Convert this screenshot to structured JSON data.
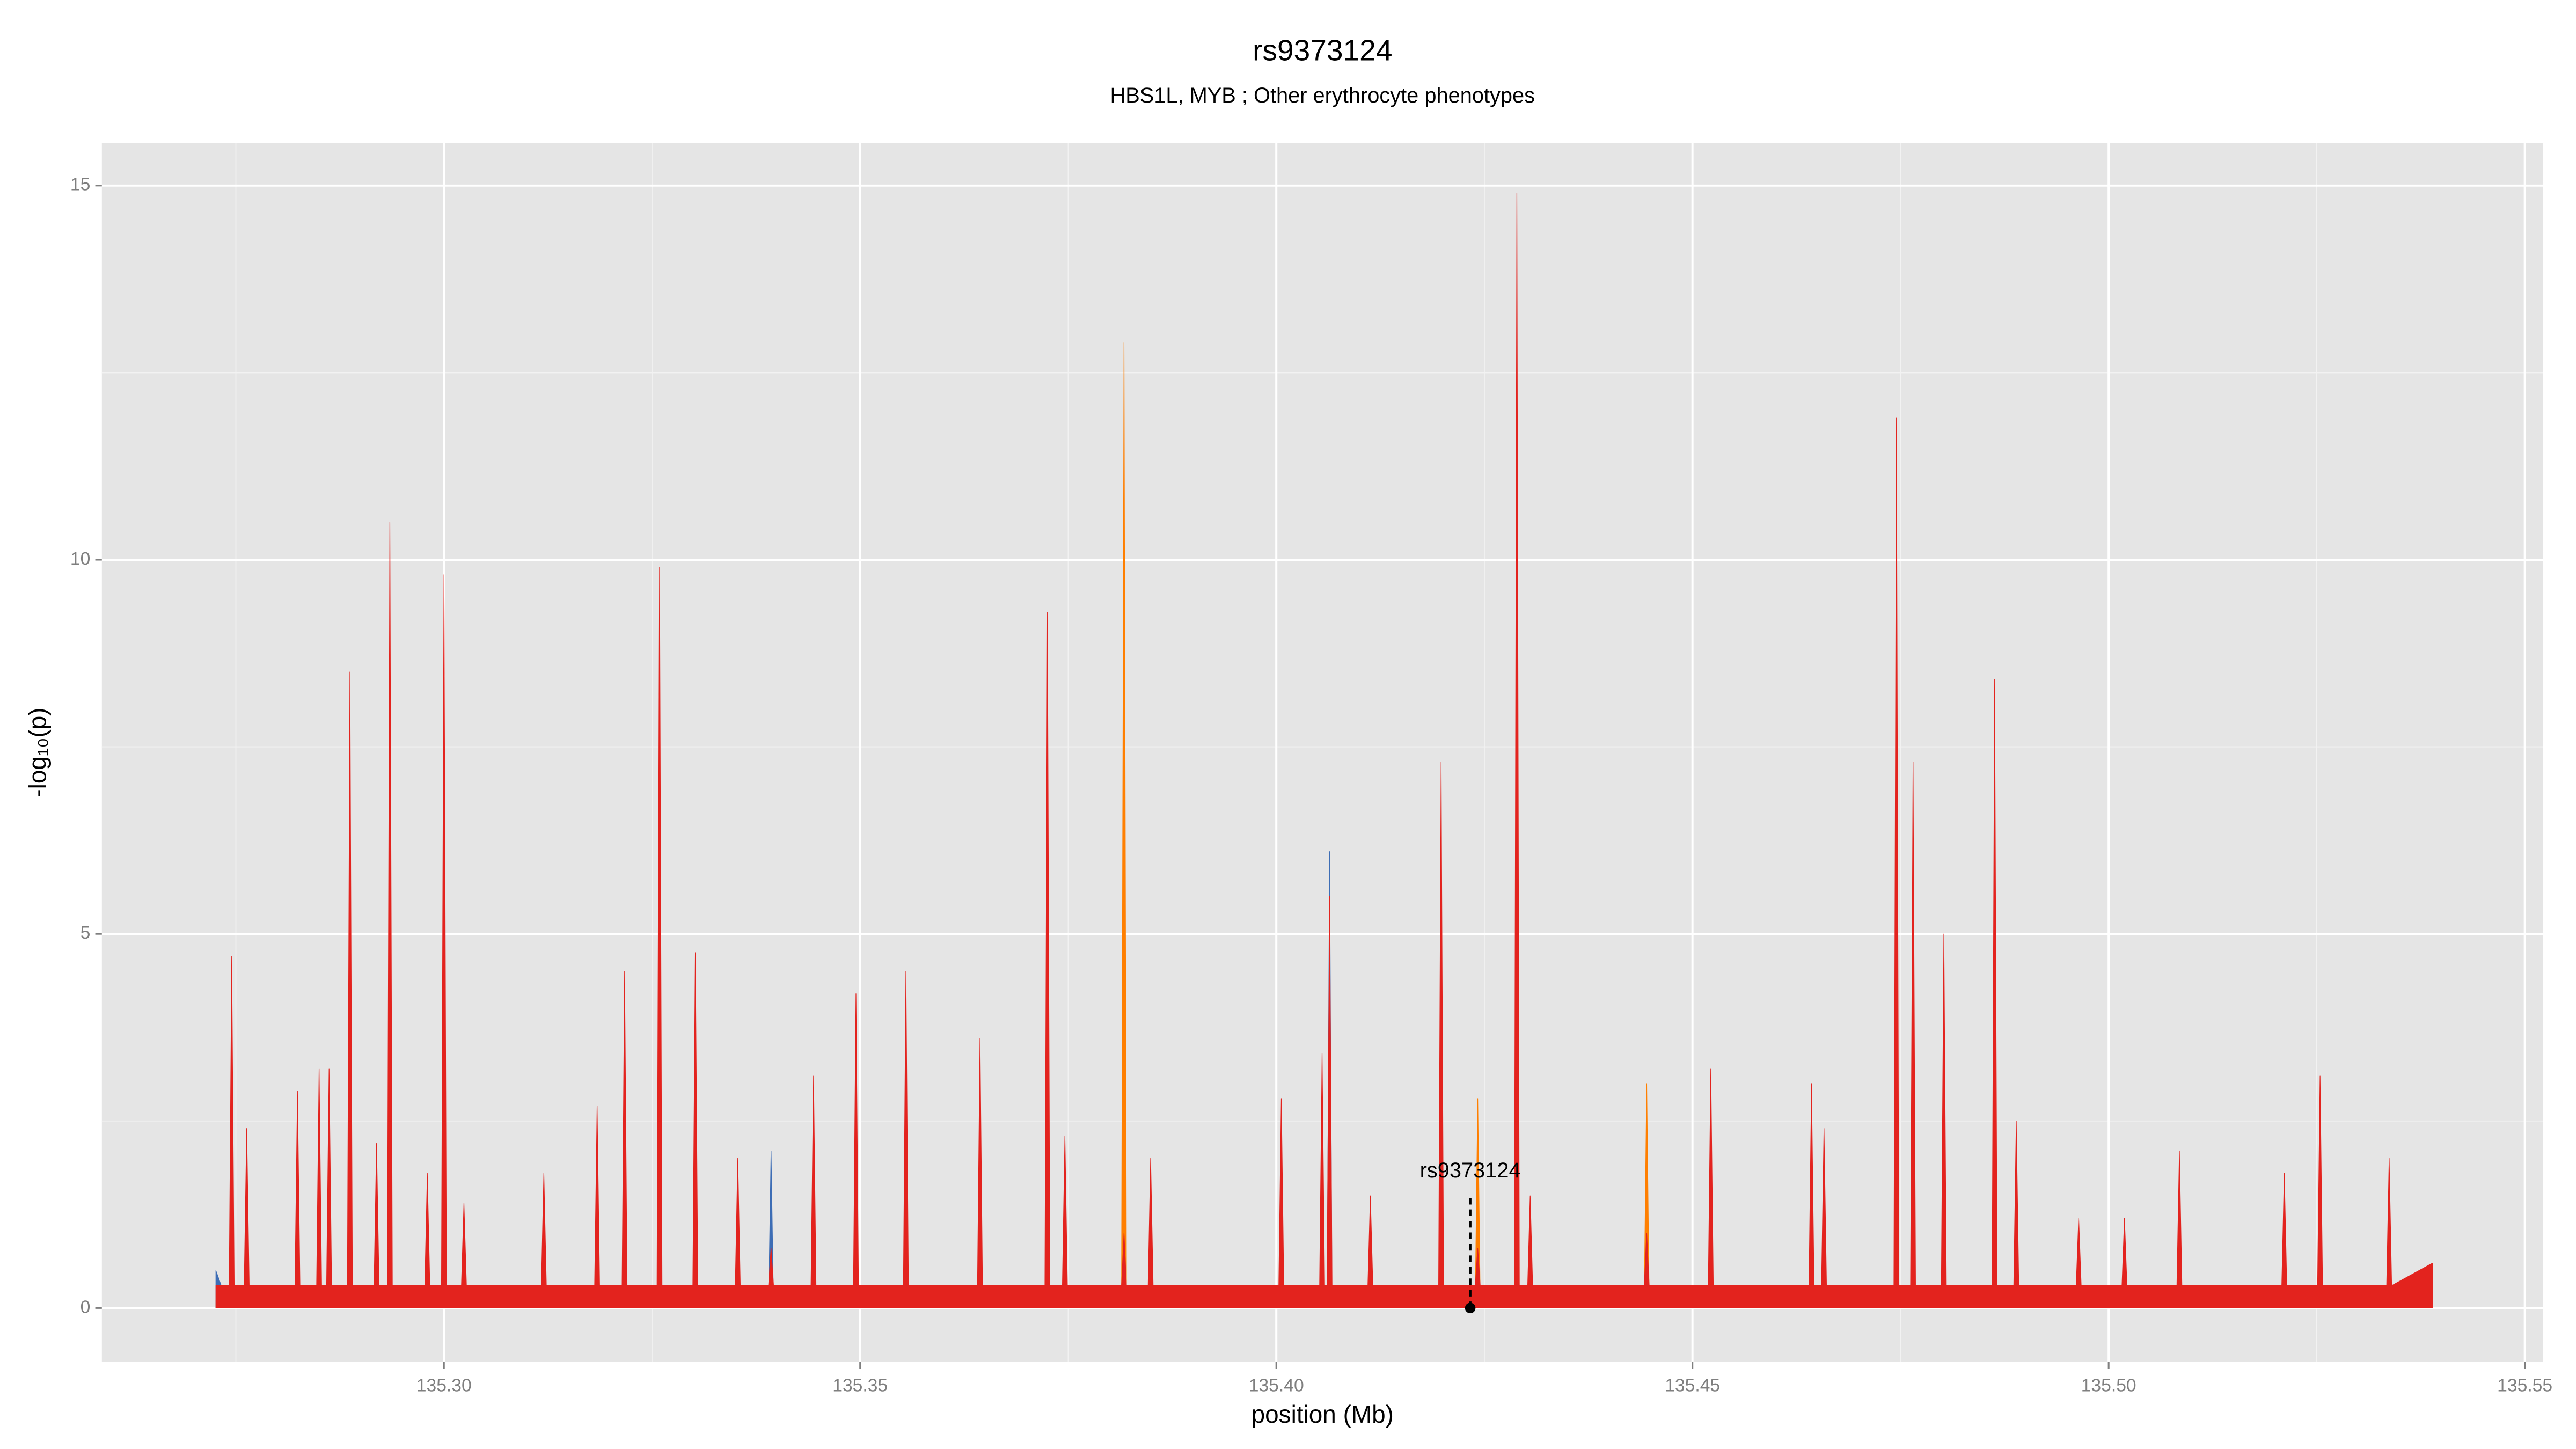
{
  "chart_data": {
    "type": "area",
    "title": "rs9373124",
    "subtitle": "HBS1L, MYB ; Other erythrocyte phenotypes",
    "x_label": "position (Mb)",
    "y_label": "-log₁₀(p)",
    "xlim": [
      135.2589,
      135.5522
    ],
    "ylim": [
      -0.72,
      15.57
    ],
    "xticks": [
      {
        "value": 135.3,
        "label": "135.30"
      },
      {
        "value": 135.35,
        "label": "135.35"
      },
      {
        "value": 135.4,
        "label": "135.40"
      },
      {
        "value": 135.45,
        "label": "135.45"
      },
      {
        "value": 135.5,
        "label": "135.50"
      },
      {
        "value": 135.55,
        "label": "135.55"
      }
    ],
    "yticks": [
      0,
      5,
      10,
      15
    ],
    "grid": true,
    "x": [
      135.2726,
      135.2742,
      135.2745,
      135.2748,
      135.276,
      135.2763,
      135.2766,
      135.2821,
      135.2824,
      135.2827,
      135.2847,
      135.285,
      135.2853,
      135.2859,
      135.2862,
      135.2865,
      135.2884,
      135.2887,
      135.289,
      135.2916,
      135.2919,
      135.2922,
      135.2932,
      135.2935,
      135.2938,
      135.2977,
      135.298,
      135.2983,
      135.2997,
      135.3,
      135.3003,
      135.3021,
      135.3024,
      135.3027,
      135.3117,
      135.312,
      135.3123,
      135.3181,
      135.3184,
      135.3187,
      135.3214,
      135.3217,
      135.322,
      135.3256,
      135.3259,
      135.3262,
      135.3299,
      135.3302,
      135.3305,
      135.335,
      135.3353,
      135.3356,
      135.339,
      135.3393,
      135.3396,
      135.3441,
      135.3444,
      135.3447,
      135.3492,
      135.3495,
      135.3498,
      135.3552,
      135.3555,
      135.3558,
      135.3641,
      135.3644,
      135.3647,
      135.3722,
      135.3725,
      135.3728,
      135.3743,
      135.3746,
      135.3749,
      135.3814,
      135.3817,
      135.382,
      135.3846,
      135.3849,
      135.3852,
      135.4003,
      135.4006,
      135.4009,
      135.4052,
      135.4055,
      135.4058,
      135.4061,
      135.4064,
      135.4067,
      135.411,
      135.4113,
      135.4116,
      135.4195,
      135.4198,
      135.4201,
      135.4239,
      135.4242,
      135.4245,
      135.4286,
      135.4289,
      135.4292,
      135.4302,
      135.4305,
      135.4308,
      135.4442,
      135.4445,
      135.4448,
      135.4519,
      135.4522,
      135.4525,
      135.464,
      135.4643,
      135.4646,
      135.4655,
      135.4658,
      135.4661,
      135.4742,
      135.4745,
      135.4748,
      135.4762,
      135.4765,
      135.4768,
      135.4799,
      135.4802,
      135.4805,
      135.486,
      135.4863,
      135.4866,
      135.4886,
      135.4889,
      135.4892,
      135.4961,
      135.4964,
      135.4967,
      135.5016,
      135.5019,
      135.5022,
      135.5082,
      135.5085,
      135.5088,
      135.5208,
      135.5211,
      135.5214,
      135.5251,
      135.5254,
      135.5257,
      135.5334,
      135.5337,
      135.534,
      135.5389
    ],
    "series": [
      {
        "color": "#ff7f00",
        "values": [
          0.1,
          0.1,
          0.3,
          0.1,
          0.1,
          0.3,
          0.1,
          0.1,
          0.5,
          0.1,
          0.1,
          0.3,
          0.1,
          0.1,
          0.3,
          0.1,
          0.1,
          0.5,
          0.1,
          0.1,
          0.3,
          0.1,
          0.1,
          0.5,
          0.1,
          0.1,
          0.3,
          0.1,
          0.1,
          0.5,
          0.1,
          0.1,
          0.3,
          0.1,
          0.1,
          0.3,
          0.1,
          0.1,
          0.3,
          0.1,
          0.1,
          0.5,
          0.1,
          0.1,
          0.5,
          0.1,
          0.1,
          0.5,
          0.1,
          0.1,
          0.3,
          0.1,
          0.1,
          0.3,
          0.1,
          0.1,
          0.5,
          0.1,
          0.1,
          0.5,
          0.1,
          0.1,
          0.5,
          0.1,
          0.1,
          0.5,
          0.1,
          0.1,
          0.5,
          0.1,
          0.1,
          0.3,
          0.1,
          0.1,
          12.9,
          0.1,
          0.1,
          0.5,
          0.1,
          0.1,
          1.5,
          0.1,
          0.1,
          0.5,
          0.1,
          0.1,
          0.5,
          0.1,
          0.1,
          1.4,
          0.1,
          0.1,
          0.5,
          0.1,
          0.1,
          2.8,
          0.1,
          0.1,
          0.5,
          0.1,
          0.1,
          0.5,
          0.1,
          0.1,
          3.0,
          0.1,
          0.1,
          0.5,
          0.1,
          0.1,
          0.5,
          0.1,
          0.1,
          0.5,
          0.1,
          0.1,
          0.5,
          0.1,
          0.1,
          0.5,
          0.1,
          0.1,
          0.5,
          0.1,
          0.1,
          2.0,
          0.1,
          0.1,
          0.5,
          0.1,
          0.1,
          0.8,
          0.1,
          0.1,
          0.5,
          0.1,
          0.1,
          0.5,
          0.1,
          0.1,
          1.7,
          0.1,
          0.1,
          0.5,
          0.1,
          0.1,
          0.5,
          0.1,
          0.3
        ]
      },
      {
        "color": "#3d6db5",
        "values": [
          0.5,
          0,
          0.6,
          0,
          0,
          0,
          0,
          0,
          0,
          0,
          0,
          0,
          0,
          0,
          0,
          0,
          0,
          1.4,
          0,
          0,
          0,
          0,
          0,
          0,
          0,
          0,
          0,
          0,
          0,
          0,
          0,
          0,
          0,
          0,
          0,
          0,
          0,
          0,
          0,
          0,
          0,
          0,
          0,
          0,
          0.8,
          0,
          0,
          0,
          0,
          0,
          0,
          0,
          0,
          2.1,
          0,
          0,
          0,
          0,
          0,
          1.2,
          0,
          0,
          0,
          0,
          0,
          0,
          0,
          0,
          0,
          0,
          0,
          0,
          0,
          0,
          0,
          0,
          0,
          1.0,
          0,
          0,
          0,
          0,
          0,
          0,
          0,
          0,
          6.1,
          0,
          0,
          0,
          0,
          0,
          2.7,
          0,
          0,
          0,
          0,
          0,
          0,
          0,
          0,
          0,
          0,
          0,
          0,
          0,
          0,
          0,
          0,
          0,
          0,
          0,
          0,
          0,
          0,
          0,
          0,
          0,
          0,
          0,
          0,
          0,
          0,
          0,
          0,
          0,
          0,
          0,
          1.5,
          0,
          0,
          0,
          0,
          0,
          0.9,
          0,
          0,
          0,
          0,
          0,
          0,
          0,
          0,
          2.1,
          0,
          0,
          0,
          0,
          0
        ]
      },
      {
        "color": "#e3231e",
        "values": [
          0.3,
          0.3,
          4.7,
          0.3,
          0.3,
          2.4,
          0.3,
          0.3,
          2.9,
          0.3,
          0.3,
          3.2,
          0.3,
          0.3,
          3.2,
          0.3,
          0.3,
          8.5,
          0.3,
          0.3,
          2.2,
          0.3,
          0.3,
          10.5,
          0.3,
          0.3,
          1.8,
          0.3,
          0.3,
          9.8,
          0.3,
          0.3,
          1.4,
          0.3,
          0.3,
          1.8,
          0.3,
          0.3,
          2.7,
          0.3,
          0.3,
          4.5,
          0.3,
          0.3,
          9.9,
          0.3,
          0.3,
          4.75,
          0.3,
          0.3,
          2.0,
          0.3,
          0.3,
          0.8,
          0.3,
          0.3,
          3.1,
          0.3,
          0.3,
          4.2,
          0.3,
          0.3,
          4.5,
          0.3,
          0.3,
          3.6,
          0.3,
          0.3,
          9.3,
          0.3,
          0.3,
          2.3,
          0.3,
          0.3,
          1.0,
          0.3,
          0.3,
          2.0,
          0.3,
          0.3,
          2.8,
          0.3,
          0.3,
          3.4,
          0.3,
          0.3,
          5.5,
          0.3,
          0.3,
          1.5,
          0.3,
          0.3,
          7.3,
          0.3,
          0.3,
          0.8,
          0.3,
          0.3,
          14.9,
          0.3,
          0.3,
          1.5,
          0.3,
          0.3,
          1.0,
          0.3,
          0.3,
          3.2,
          0.3,
          0.3,
          3.0,
          0.3,
          0.3,
          2.4,
          0.3,
          0.3,
          11.9,
          0.3,
          0.3,
          7.3,
          0.3,
          0.3,
          5.0,
          0.3,
          0.3,
          8.4,
          0.3,
          0.3,
          2.5,
          0.3,
          0.3,
          1.2,
          0.3,
          0.3,
          1.2,
          0.3,
          0.3,
          2.1,
          0.3,
          0.3,
          1.8,
          0.3,
          0.3,
          3.1,
          0.3,
          0.3,
          2.0,
          0.3,
          0.6
        ]
      }
    ],
    "annotations": [
      {
        "text": "rs9373124",
        "x": 135.4233,
        "y": 0
      }
    ]
  }
}
